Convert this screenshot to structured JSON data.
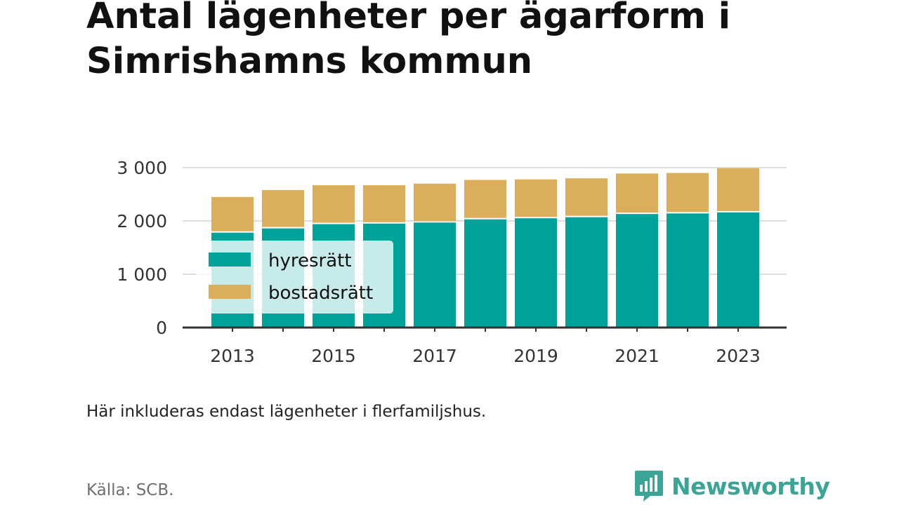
{
  "title": "Antal lägenheter per ägarform i Simrishamns kommun",
  "note": "Här inkluderas endast lägenheter i flerfamiljshus.",
  "source": "Källa: SCB.",
  "brand": {
    "name": "Newsworthy",
    "icon": "newsworthy-logo-icon",
    "color": "#3aa597"
  },
  "chart_data": {
    "type": "bar",
    "stacked": true,
    "categories": [
      "2013",
      "2014",
      "2015",
      "2016",
      "2017",
      "2018",
      "2019",
      "2020",
      "2021",
      "2022",
      "2023"
    ],
    "x_tick_labels": [
      "2013",
      "",
      "2015",
      "",
      "2017",
      "",
      "2019",
      "",
      "2021",
      "",
      "2023"
    ],
    "series": [
      {
        "name": "hyresrätt",
        "color": "#00a39a",
        "values": [
          1780,
          1860,
          1940,
          1950,
          1970,
          2030,
          2050,
          2070,
          2130,
          2140,
          2160
        ]
      },
      {
        "name": "bostadsrätt",
        "color": "#dbae5c",
        "values": [
          670,
          720,
          730,
          720,
          730,
          740,
          730,
          730,
          760,
          760,
          830
        ]
      }
    ],
    "ylim": [
      0,
      3000
    ],
    "y_ticks": [
      0,
      1000,
      2000,
      3000
    ],
    "y_tick_labels": [
      "0",
      "1 000",
      "2 000",
      "3 000"
    ],
    "grid": true,
    "legend": "middle-left",
    "xlabel": "",
    "ylabel": ""
  }
}
